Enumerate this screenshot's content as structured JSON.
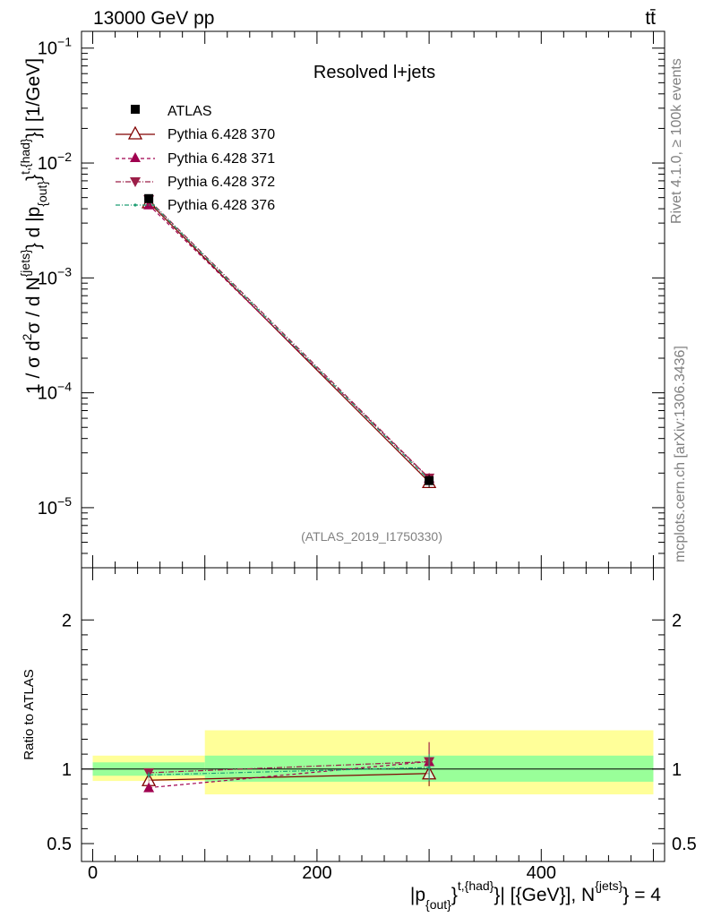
{
  "header": {
    "energy_label": "13000 GeV pp",
    "process_label": "tt̄"
  },
  "side_labels": {
    "rivet": "Rivet 4.1.0, ≥ 100k events",
    "source": "mcplots.cern.ch [arXiv:1306.3436]"
  },
  "colors": {
    "data": "#000000",
    "pythia370": "#800000",
    "pythia371": "#a0004f",
    "pythia372": "#9c1e48",
    "pythia376": "#1f9e73",
    "band_inner": "#99ff99",
    "band_outer": "#ffff99"
  },
  "chart_data": [
    {
      "type": "scatter",
      "panel": "main",
      "title": "Resolved l+jets",
      "watermark": "(ATLAS_2019_I1750330)",
      "ylabel": "1 / σ d²σ / d N^{jets} d |p_{out}^{t,{had}}| [1/GeV]",
      "yscale": "log",
      "ylim": [
        3e-06,
        0.14
      ],
      "xlim": [
        -10,
        510
      ],
      "yticks": [
        {
          "value": 0.1,
          "base": "10",
          "exp": "−1"
        },
        {
          "value": 0.01,
          "base": "10",
          "exp": "−2"
        },
        {
          "value": 0.001,
          "base": "10",
          "exp": "−3"
        },
        {
          "value": 0.0001,
          "base": "10",
          "exp": "−4"
        },
        {
          "value": 1e-05,
          "base": "10",
          "exp": "−5"
        }
      ],
      "legend_position": "top-left",
      "series": [
        {
          "name": "ATLAS",
          "key": "data",
          "style": "square",
          "x": [
            50,
            300
          ],
          "y": [
            0.0049,
            1.72e-05
          ],
          "yerr": [
            0.0004,
            2.2e-06
          ]
        },
        {
          "name": "Pythia 6.428 370",
          "key": "pythia370",
          "style": "solid-open-triangle",
          "x": [
            50,
            300
          ],
          "y": [
            0.00455,
            1.67e-05
          ]
        },
        {
          "name": "Pythia 6.428 371",
          "key": "pythia371",
          "style": "dashed-filled-triangle",
          "x": [
            50,
            300
          ],
          "y": [
            0.00432,
            1.81e-05
          ]
        },
        {
          "name": "Pythia 6.428 372",
          "key": "pythia372",
          "style": "dashdot-inverted-triangle",
          "x": [
            50,
            300
          ],
          "y": [
            0.00478,
            1.81e-05
          ]
        },
        {
          "name": "Pythia 6.428 376",
          "key": "pythia376",
          "style": "dashdot-dot",
          "x": [
            50,
            300
          ],
          "y": [
            0.0047,
            1.74e-05
          ]
        }
      ]
    },
    {
      "type": "scatter",
      "panel": "ratio",
      "ylabel": "Ratio to ATLAS",
      "xlabel": "|p_{out}^{t,{had}}| [{GeV}], N^{jets} = 4",
      "ylim": [
        0.38,
        2.35
      ],
      "xlim": [
        -10,
        510
      ],
      "yticks": [
        0.5,
        1,
        2
      ],
      "ytick_labels": [
        "0.5",
        "1",
        "2"
      ],
      "xticks": [
        0,
        200,
        400
      ],
      "xtick_labels": [
        "0",
        "200",
        "400"
      ],
      "bands": [
        {
          "x": [
            0,
            100
          ],
          "inner": [
            0.955,
            1.045
          ],
          "outer": [
            0.92,
            1.09
          ]
        },
        {
          "x": [
            100,
            500
          ],
          "inner": [
            0.915,
            1.09
          ],
          "outer": [
            0.83,
            1.26
          ]
        }
      ],
      "series": [
        {
          "name": "Pythia 6.428 370",
          "key": "pythia370",
          "x": [
            50,
            300
          ],
          "y": [
            0.925,
            0.97
          ],
          "yerr": [
            0.02,
            0.085
          ]
        },
        {
          "name": "Pythia 6.428 371",
          "key": "pythia371",
          "x": [
            50,
            300
          ],
          "y": [
            0.875,
            1.05
          ],
          "yerr": [
            0.02,
            0.13
          ]
        },
        {
          "name": "Pythia 6.428 372",
          "key": "pythia372",
          "x": [
            50,
            300
          ],
          "y": [
            0.975,
            1.05
          ],
          "yerr": [
            0.02,
            0.13
          ]
        },
        {
          "name": "Pythia 6.428 376",
          "key": "pythia376",
          "x": [
            50,
            300
          ],
          "y": [
            0.96,
            1.01
          ],
          "yerr": [
            0.02,
            0.09
          ]
        }
      ]
    }
  ]
}
